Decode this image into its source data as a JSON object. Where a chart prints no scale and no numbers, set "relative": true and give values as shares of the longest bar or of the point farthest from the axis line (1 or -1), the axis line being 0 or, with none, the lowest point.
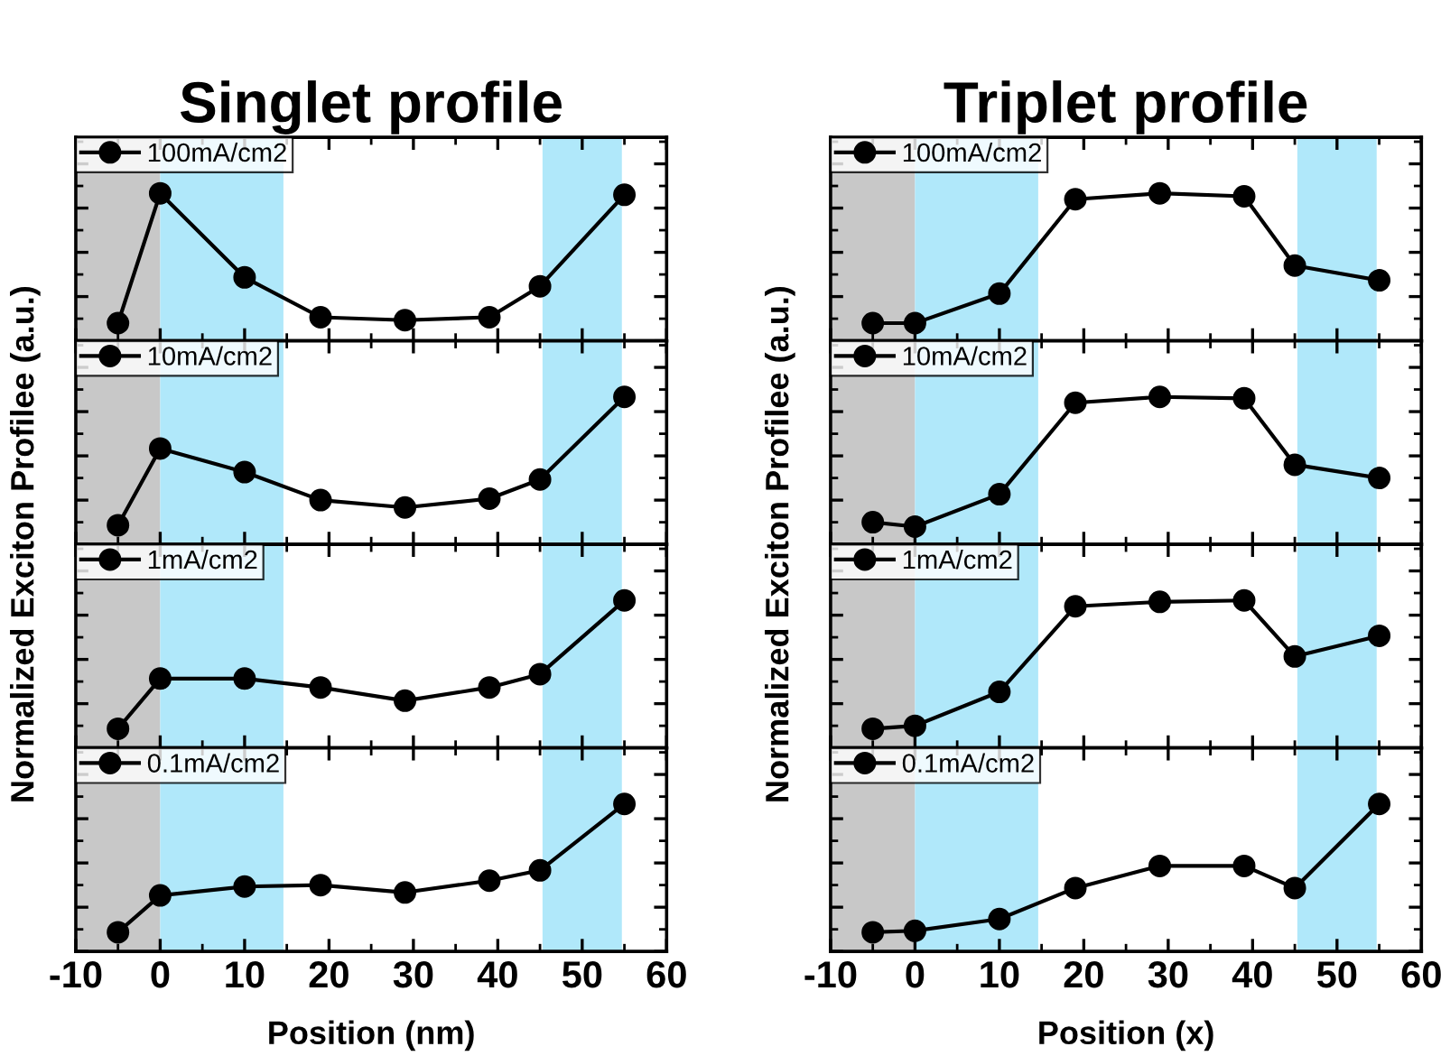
{
  "chart_data": [
    {
      "type": "line",
      "title": "Singlet profile",
      "ylabel": "Normalized Exciton Profilee (a.u.)",
      "relative": true,
      "x": [
        -5,
        0,
        10,
        19,
        29,
        39,
        45,
        55
      ],
      "xlim": [
        -10,
        60
      ],
      "xticks": [
        -10,
        0,
        10,
        20,
        30,
        40,
        50,
        60
      ],
      "tick_labels": false,
      "legend": "top left",
      "marker": "circle",
      "line_style": "solid",
      "bands": [
        {
          "axis": "x",
          "from": -10,
          "to": 0,
          "color": "#c8c8c8"
        },
        {
          "axis": "x",
          "from": 0,
          "to": 14.6,
          "color": "#b0e8fa"
        },
        {
          "axis": "x",
          "from": 45.3,
          "to": 54.7,
          "color": "#b0e8fa"
        }
      ],
      "series": [
        {
          "name": "100mA/cm2",
          "color": "#000000",
          "values": [
            0.12,
            1,
            0.43,
            0.16,
            0.14,
            0.16,
            0.37,
            0.99
          ]
        }
      ]
    },
    {
      "type": "line",
      "title": "Triplet profile",
      "ylabel": "Normalized Exciton Profilee (a.u.)",
      "relative": true,
      "x": [
        -5,
        0,
        10,
        19,
        29,
        39,
        45,
        55
      ],
      "xlim": [
        -10,
        60
      ],
      "xticks": [
        -10,
        0,
        10,
        20,
        30,
        40,
        50,
        60
      ],
      "tick_labels": false,
      "legend": "top left",
      "marker": "circle",
      "line_style": "solid",
      "bands": [
        {
          "axis": "x",
          "from": -10,
          "to": 0,
          "color": "#c8c8c8"
        },
        {
          "axis": "x",
          "from": 0,
          "to": 14.6,
          "color": "#b0e8fa"
        },
        {
          "axis": "x",
          "from": 45.3,
          "to": 54.7,
          "color": "#b0e8fa"
        }
      ],
      "series": [
        {
          "name": "100mA/cm2",
          "color": "#000000",
          "values": [
            0.12,
            0.12,
            0.32,
            0.96,
            1,
            0.98,
            0.51,
            0.41
          ]
        }
      ]
    },
    {
      "type": "line",
      "relative": true,
      "x": [
        -5,
        0,
        10,
        19,
        29,
        39,
        45,
        55
      ],
      "xlim": [
        -10,
        60
      ],
      "xticks": [
        -10,
        0,
        10,
        20,
        30,
        40,
        50,
        60
      ],
      "tick_labels": false,
      "legend": "top left",
      "marker": "circle",
      "line_style": "solid",
      "bands": [
        {
          "axis": "x",
          "from": -10,
          "to": 0,
          "color": "#c8c8c8"
        },
        {
          "axis": "x",
          "from": 0,
          "to": 14.6,
          "color": "#b0e8fa"
        },
        {
          "axis": "x",
          "from": 45.3,
          "to": 54.7,
          "color": "#b0e8fa"
        }
      ],
      "series": [
        {
          "name": "10mA/cm2",
          "color": "#000000",
          "values": [
            0.13,
            0.65,
            0.49,
            0.3,
            0.25,
            0.31,
            0.44,
            1
          ]
        }
      ]
    },
    {
      "type": "line",
      "relative": true,
      "x": [
        -5,
        0,
        10,
        19,
        29,
        39,
        45,
        55
      ],
      "xlim": [
        -10,
        60
      ],
      "xticks": [
        -10,
        0,
        10,
        20,
        30,
        40,
        50,
        60
      ],
      "tick_labels": false,
      "legend": "top left",
      "marker": "circle",
      "line_style": "solid",
      "bands": [
        {
          "axis": "x",
          "from": -10,
          "to": 0,
          "color": "#c8c8c8"
        },
        {
          "axis": "x",
          "from": 0,
          "to": 14.6,
          "color": "#b0e8fa"
        },
        {
          "axis": "x",
          "from": 45.3,
          "to": 54.7,
          "color": "#b0e8fa"
        }
      ],
      "series": [
        {
          "name": "10mA/cm2",
          "color": "#000000",
          "values": [
            0.15,
            0.12,
            0.34,
            0.96,
            1,
            0.99,
            0.54,
            0.45
          ]
        }
      ]
    },
    {
      "type": "line",
      "relative": true,
      "x": [
        -5,
        0,
        10,
        19,
        29,
        39,
        45,
        55
      ],
      "xlim": [
        -10,
        60
      ],
      "xticks": [
        -10,
        0,
        10,
        20,
        30,
        40,
        50,
        60
      ],
      "tick_labels": false,
      "legend": "top left",
      "marker": "circle",
      "line_style": "solid",
      "bands": [
        {
          "axis": "x",
          "from": -10,
          "to": 0,
          "color": "#c8c8c8"
        },
        {
          "axis": "x",
          "from": 0,
          "to": 14.6,
          "color": "#b0e8fa"
        },
        {
          "axis": "x",
          "from": 45.3,
          "to": 54.7,
          "color": "#b0e8fa"
        }
      ],
      "series": [
        {
          "name": "1mA/cm2",
          "color": "#000000",
          "values": [
            0.13,
            0.47,
            0.47,
            0.41,
            0.32,
            0.41,
            0.5,
            1
          ]
        }
      ]
    },
    {
      "type": "line",
      "relative": true,
      "x": [
        -5,
        0,
        10,
        19,
        29,
        39,
        45,
        55
      ],
      "xlim": [
        -10,
        60
      ],
      "xticks": [
        -10,
        0,
        10,
        20,
        30,
        40,
        50,
        60
      ],
      "tick_labels": false,
      "legend": "top left",
      "marker": "circle",
      "line_style": "solid",
      "bands": [
        {
          "axis": "x",
          "from": -10,
          "to": 0,
          "color": "#c8c8c8"
        },
        {
          "axis": "x",
          "from": 0,
          "to": 14.6,
          "color": "#b0e8fa"
        },
        {
          "axis": "x",
          "from": 45.3,
          "to": 54.7,
          "color": "#b0e8fa"
        }
      ],
      "series": [
        {
          "name": "1mA/cm2",
          "color": "#000000",
          "values": [
            0.13,
            0.15,
            0.38,
            0.96,
            0.99,
            1,
            0.62,
            0.76
          ]
        }
      ]
    },
    {
      "type": "line",
      "xlabel": "Position (nm)",
      "relative": true,
      "x": [
        -5,
        0,
        10,
        19,
        29,
        39,
        45,
        55
      ],
      "xlim": [
        -10,
        60
      ],
      "xticks": [
        -10,
        0,
        10,
        20,
        30,
        40,
        50,
        60
      ],
      "tick_labels": "x",
      "legend": "top left",
      "marker": "circle",
      "line_style": "solid",
      "bands": [
        {
          "axis": "x",
          "from": -10,
          "to": 0,
          "color": "#c8c8c8"
        },
        {
          "axis": "x",
          "from": 0,
          "to": 14.6,
          "color": "#b0e8fa"
        },
        {
          "axis": "x",
          "from": 45.3,
          "to": 54.7,
          "color": "#b0e8fa"
        }
      ],
      "series": [
        {
          "name": "0.1mA/cm2",
          "color": "#000000",
          "values": [
            0.13,
            0.38,
            0.44,
            0.45,
            0.4,
            0.48,
            0.55,
            1
          ]
        }
      ]
    },
    {
      "type": "line",
      "xlabel": "Position (x)",
      "relative": true,
      "x": [
        -5,
        0,
        10,
        19,
        29,
        39,
        45,
        55
      ],
      "xlim": [
        -10,
        60
      ],
      "xticks": [
        -10,
        0,
        10,
        20,
        30,
        40,
        50,
        60
      ],
      "tick_labels": "x",
      "legend": "top left",
      "marker": "circle",
      "line_style": "solid",
      "bands": [
        {
          "axis": "x",
          "from": -10,
          "to": 0,
          "color": "#c8c8c8"
        },
        {
          "axis": "x",
          "from": 0,
          "to": 14.6,
          "color": "#b0e8fa"
        },
        {
          "axis": "x",
          "from": 45.3,
          "to": 54.7,
          "color": "#b0e8fa"
        }
      ],
      "series": [
        {
          "name": "0.1mA/cm2",
          "color": "#000000",
          "values": [
            0.13,
            0.14,
            0.22,
            0.43,
            0.58,
            0.58,
            0.43,
            1
          ]
        }
      ]
    }
  ]
}
